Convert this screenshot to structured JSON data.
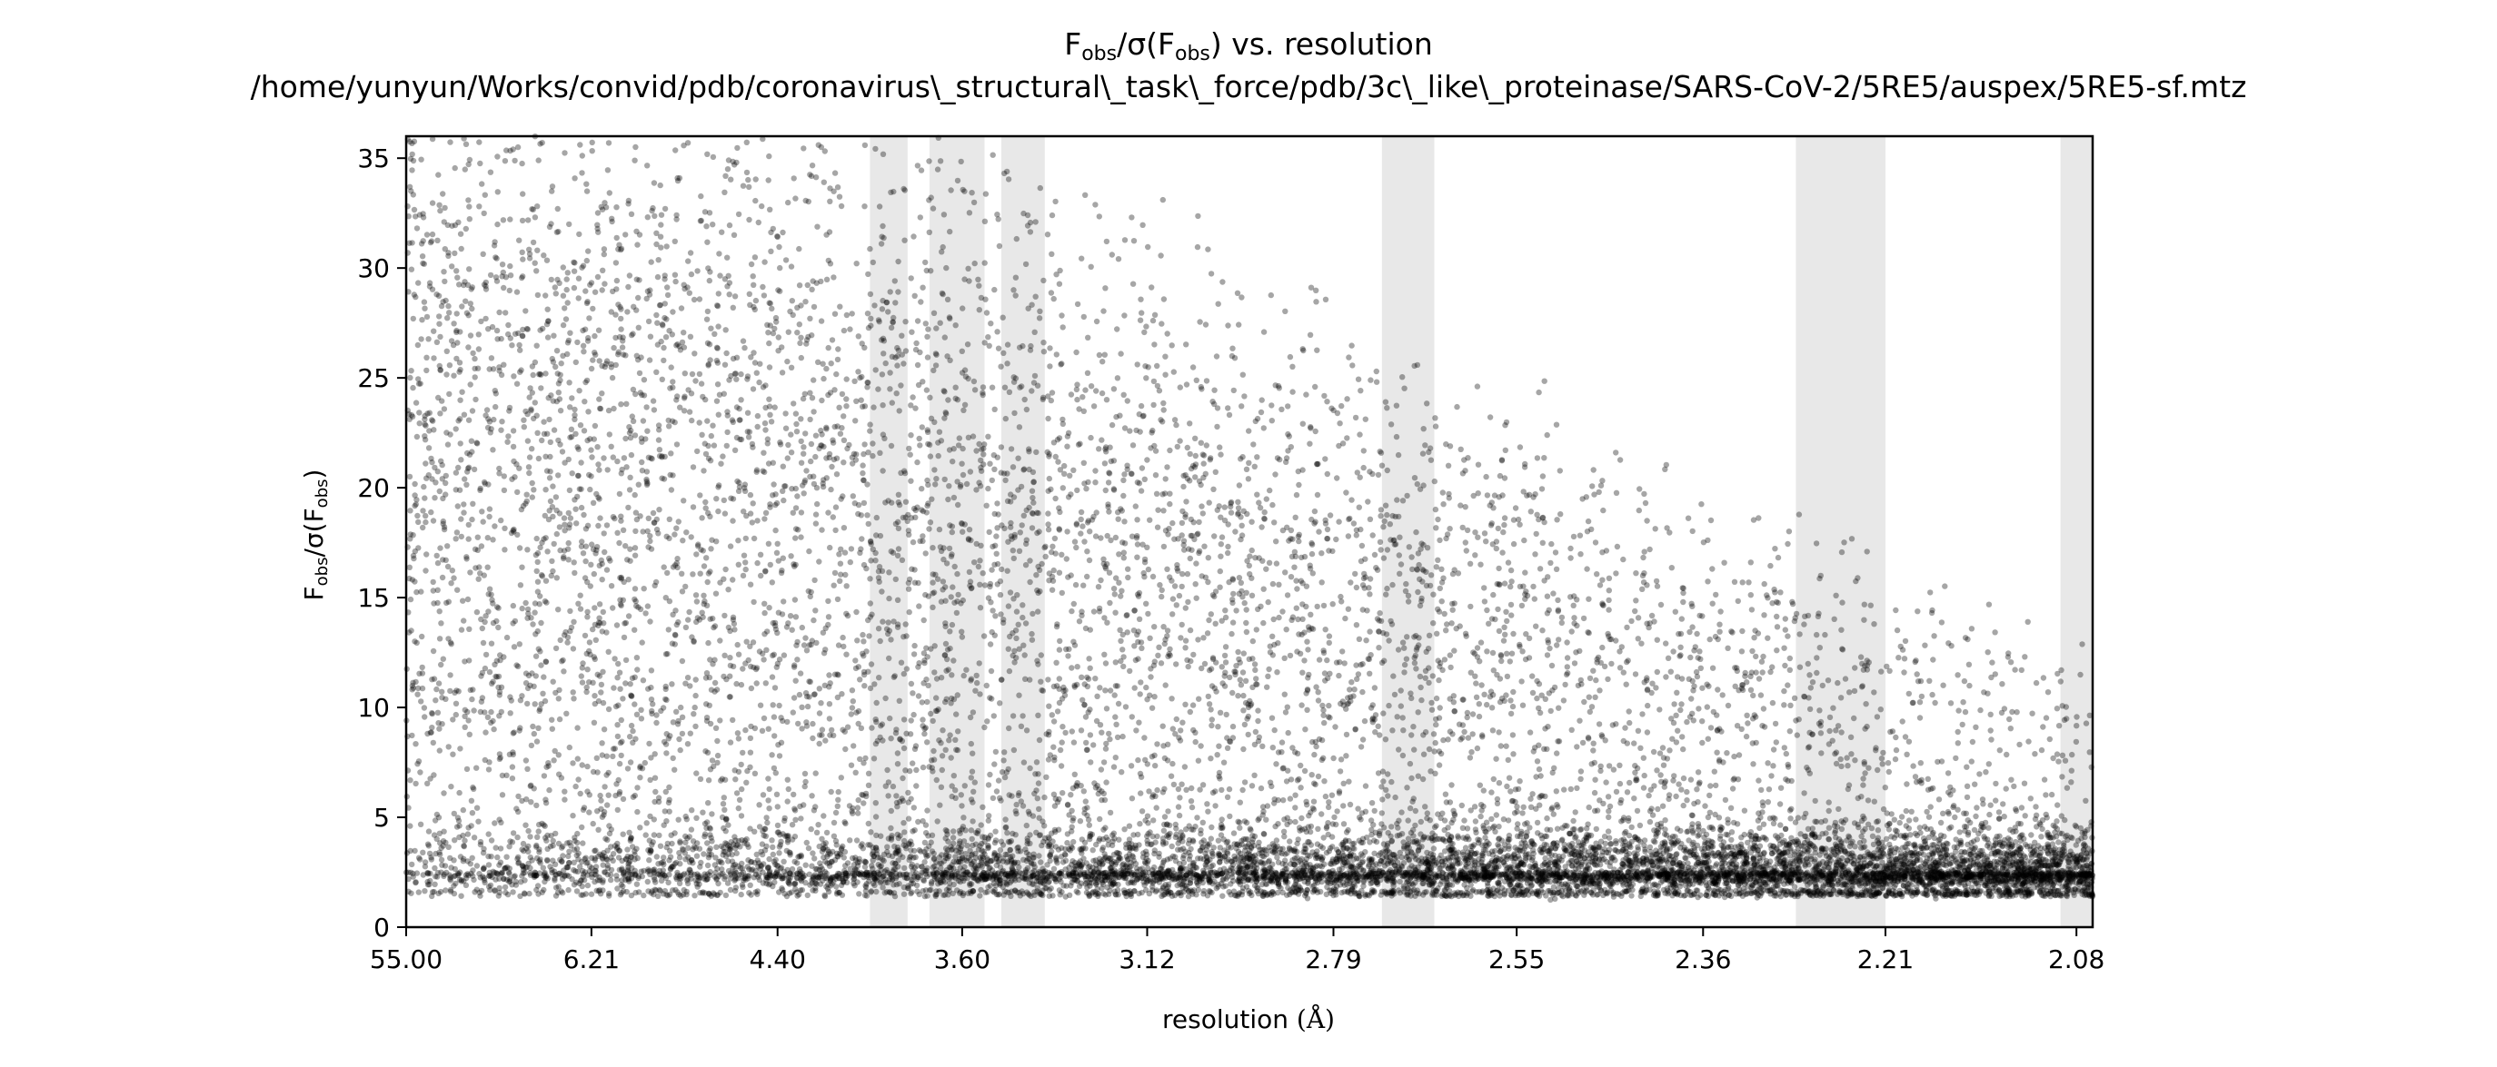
{
  "chart_data": {
    "type": "scatter",
    "title_line1": {
      "pre": "F",
      "sub1": "obs",
      "mid": "/σ(F",
      "sub2": "obs",
      "post": ") vs. resolution"
    },
    "title_line2": "/home/yunyun/Works/convid/pdb/coronavirus\\_structural\\_task\\_force/pdb/3c\\_like\\_proteinase/SARS-CoV-2/5RE5/auspex/5RE5-sf.mtz",
    "xlabel": {
      "text": "resolution ",
      "unit": "(Å)"
    },
    "ylabel": {
      "pre": "F",
      "sub1": "obs",
      "mid": "/σ(F",
      "sub2": "obs",
      "post": ")"
    },
    "x_axis_scale": "1/d^2 (resolution ticks shown in Å)",
    "xlim_resolution": [
      55.0,
      2.07
    ],
    "ylim": [
      0,
      36
    ],
    "xticks": [
      "55.00",
      "6.21",
      "4.40",
      "3.60",
      "3.12",
      "2.79",
      "2.55",
      "2.36",
      "2.21",
      "2.08"
    ],
    "yticks": [
      "0",
      "5",
      "10",
      "15",
      "20",
      "25",
      "30",
      "35"
    ],
    "point_color": "#000000",
    "point_opacity": 0.35,
    "band_color": "#e8e8e8",
    "shaded_resolution_bands": [
      [
        3.94,
        3.79
      ],
      [
        3.71,
        3.53
      ],
      [
        3.48,
        3.36
      ],
      [
        2.72,
        2.65
      ],
      [
        2.28,
        2.21
      ],
      [
        2.09,
        2.07
      ]
    ],
    "approx_point_count": 14000,
    "point_density_profile": {
      "bulk_level": 2.5,
      "bulk_spread": 1.2,
      "upper_envelope_at_low_res": 36,
      "upper_envelope_at_high_res": 8,
      "description": "dense band near 2–3 rising in density toward high resolution; diffuse cloud extending up to ~36 at low resolution"
    },
    "grid": false,
    "legend": "none"
  }
}
